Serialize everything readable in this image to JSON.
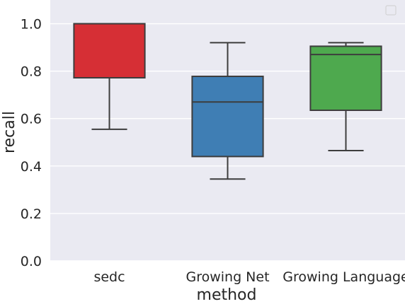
{
  "chart_data": {
    "type": "box",
    "xlabel": "method",
    "ylabel": "recall",
    "ylim": [
      0,
      1.1
    ],
    "yticks": [
      "0.0",
      "0.2",
      "0.4",
      "0.6",
      "0.8",
      "1.0"
    ],
    "grid": true,
    "legend": {
      "placement": "top-right",
      "entries": []
    },
    "categories": [
      "sedc",
      "Growing Net",
      "Growing Language"
    ],
    "boxes": [
      {
        "category": "sedc",
        "whisker_low": 0.555,
        "q1": 0.772,
        "median": 1.0,
        "q3": 1.0,
        "whisker_high": 1.0,
        "color": "#d62f35"
      },
      {
        "category": "Growing Net",
        "whisker_low": 0.345,
        "q1": 0.44,
        "median": 0.67,
        "q3": 0.778,
        "whisker_high": 0.92,
        "color": "#3f7eb4"
      },
      {
        "category": "Growing Language",
        "whisker_low": 0.465,
        "q1": 0.635,
        "median": 0.87,
        "q3": 0.905,
        "whisker_high": 0.92,
        "color": "#4ea94e"
      }
    ],
    "colors": {
      "background": "#eaeaf2",
      "grid": "#ffffff",
      "outline": "#3d3d3d",
      "text": "#262626"
    }
  }
}
